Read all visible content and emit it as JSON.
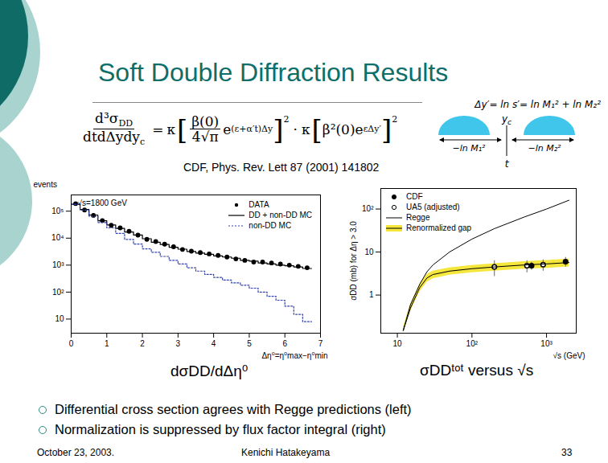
{
  "chart_data": [
    {
      "type": "histogram",
      "xlabel": "Δη⁰=η⁰max−η⁰min",
      "ylabel": "events",
      "log": "y",
      "legend": "top-right",
      "annotations": [
        "√s=1800 GeV"
      ],
      "xlim": [
        0,
        7
      ],
      "xticks": [
        0,
        1,
        2,
        3,
        4,
        5,
        6,
        7
      ],
      "ylim": [
        3,
        400000
      ],
      "yticks": [
        10,
        {
          "value": 100,
          "label": "10²"
        },
        {
          "value": 1000,
          "label": "10³"
        },
        {
          "value": 10000,
          "label": "10⁴"
        },
        {
          "value": 100000,
          "label": "10⁵"
        }
      ],
      "bins": [
        0,
        0.25,
        0.5,
        0.75,
        1,
        1.25,
        1.5,
        1.75,
        2,
        2.25,
        2.5,
        2.75,
        3,
        3.25,
        3.5,
        3.75,
        4,
        4.25,
        4.5,
        4.75,
        5,
        5.25,
        5.5,
        5.75,
        6,
        6.25,
        6.5,
        6.75
      ],
      "series": [
        {
          "name": "DATA",
          "type": "scatter",
          "marker": "circle",
          "color": "#000000",
          "values": [
            190000,
            110000,
            70000,
            45000,
            30000,
            24000,
            18000,
            13000,
            9000,
            7500,
            6000,
            4800,
            3800,
            3300,
            2900,
            2600,
            2300,
            2000,
            1700,
            1500,
            1300,
            1300,
            1200,
            1100,
            1000,
            900,
            800
          ]
        },
        {
          "name": "DD + non-DD MC",
          "type": "step",
          "line_style": "solid",
          "color": "#000000",
          "values": [
            180000,
            115000,
            72000,
            44000,
            31000,
            23000,
            17000,
            13000,
            9500,
            7000,
            5800,
            4600,
            3900,
            3200,
            2800,
            2500,
            2200,
            2000,
            1800,
            1500,
            1400,
            1200,
            1100,
            1000,
            950,
            850,
            750
          ]
        },
        {
          "name": "non-DD MC",
          "type": "step",
          "line_style": "dotted",
          "color": "#3344aa",
          "values": [
            180000,
            110000,
            65000,
            38000,
            24000,
            15000,
            9000,
            6000,
            4000,
            3000,
            2100,
            1500,
            1100,
            800,
            600,
            450,
            350,
            280,
            220,
            180,
            140,
            100,
            70,
            50,
            30,
            15,
            8
          ]
        }
      ]
    },
    {
      "type": "line",
      "xlabel": "√s (GeV)",
      "ylabel": "σDD (mb) for Δη > 3.0",
      "log": true,
      "legend": "top-left",
      "xlim": [
        6,
        2500
      ],
      "xticks": [
        10,
        {
          "value": 100,
          "label": "10²"
        },
        {
          "value": 1000,
          "label": "10³"
        }
      ],
      "ylim": [
        0.13,
        300
      ],
      "yticks": [
        1,
        10,
        {
          "value": 100,
          "label": "10²"
        }
      ],
      "series": [
        {
          "name": "CDF",
          "type": "scatter",
          "marker": "circle",
          "color": "#000000",
          "x": [
            630,
            1800
          ],
          "values": [
            4.8,
            6.0
          ],
          "error": [
            1.0,
            1.5
          ]
        },
        {
          "name": "UA5 (adjusted)",
          "type": "scatter",
          "marker": "open_circle",
          "color": "#000000",
          "x": [
            200,
            546,
            900
          ],
          "values": [
            4.5,
            4.8,
            5.1
          ],
          "error": [
            1.8,
            1.5,
            1.5
          ]
        },
        {
          "name": "Regge",
          "type": "line",
          "line_style": "solid",
          "color": "#000000",
          "x": [
            12,
            15,
            20,
            25,
            30,
            50,
            100,
            200,
            500,
            1000,
            2000
          ],
          "values": [
            0.15,
            0.6,
            1.8,
            3.5,
            5,
            10,
            20,
            35,
            65,
            100,
            160
          ]
        },
        {
          "name": "Renormalized gap",
          "type": "line",
          "line_style": "solid",
          "color": "#000000",
          "band_color": "#f5e63c",
          "x": [
            12,
            15,
            20,
            25,
            30,
            50,
            100,
            200,
            500,
            1000,
            2000
          ],
          "values": [
            0.15,
            0.5,
            1.5,
            2.5,
            3,
            3.6,
            4.1,
            4.5,
            5,
            5.3,
            5.7
          ],
          "band_low": [
            0.13,
            0.42,
            1.2,
            2.0,
            2.4,
            2.9,
            3.3,
            3.6,
            4.0,
            4.2,
            4.5
          ],
          "band_high": [
            0.18,
            0.6,
            1.8,
            3.0,
            3.6,
            4.3,
            4.9,
            5.4,
            6.0,
            6.4,
            6.9
          ]
        }
      ]
    }
  ],
  "slide": {
    "title": "Soft Double Diffraction Results",
    "reference": "CDF, Phys. Rev. Lett 87 (2001) 141802",
    "formula": {
      "lhs_num": "d³σ",
      "lhs_num_sub": "DD",
      "lhs_den": "dtdΔydy",
      "lhs_den_sub": "c",
      "eq": "=",
      "kappa": "κ",
      "open": "[",
      "close": "]",
      "sq": "2",
      "f1_num": "β(0)",
      "f1_den": "4√π",
      "e": "e",
      "e1_exp": "(ε+α′t)Δy",
      "dot": "·",
      "f2": "β²(0)",
      "e2_exp": "εΔy′"
    },
    "diagram": {
      "equation": "Δy′= ln s′= ln M₁² + ln M₂²",
      "yc": "y",
      "yc_sub": "c",
      "left": "−ln M₁²",
      "right": "−ln M₂²",
      "t": "t"
    },
    "captions": [
      "dσDD/dΔη⁰",
      "σDDᵗᵒᵗ versus √s"
    ],
    "bullets": [
      "Differential cross section agrees with Regge predictions (left)",
      "Normalization is suppressed by flux factor integral (right)"
    ],
    "footer": {
      "date": "October 23, 2003.",
      "author": "Kenichi Hatakeyama",
      "page": "33"
    }
  }
}
